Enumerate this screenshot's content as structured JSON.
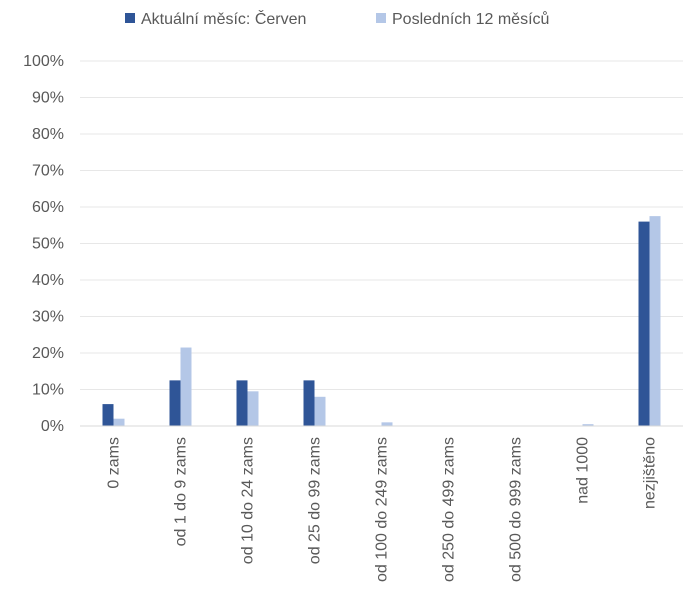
{
  "chart_data": {
    "type": "bar",
    "categories": [
      "0 zams",
      "od 1 do 9 zams",
      "od 10 do 24 zams",
      "od 25 do 99 zams",
      "od 100 do 249 zams",
      "od 250 do 499 zams",
      "od 500 do 999 zams",
      "nad 1000",
      "nezjištěno"
    ],
    "series": [
      {
        "name": "Aktuální měsíc: Červen",
        "color": "#2F5597",
        "values": [
          6,
          12.5,
          12.5,
          12.5,
          0,
          0,
          0,
          0,
          56
        ]
      },
      {
        "name": "Posledních 12 měsíců",
        "color": "#B4C7E7",
        "values": [
          2,
          21.5,
          9.5,
          8,
          1,
          0,
          0,
          0.5,
          57.5
        ]
      }
    ],
    "ylim": [
      0,
      100
    ],
    "yticks": [
      "0%",
      "10%",
      "20%",
      "30%",
      "40%",
      "50%",
      "60%",
      "70%",
      "80%",
      "90%",
      "100%"
    ],
    "grid": true,
    "legend": "top"
  }
}
